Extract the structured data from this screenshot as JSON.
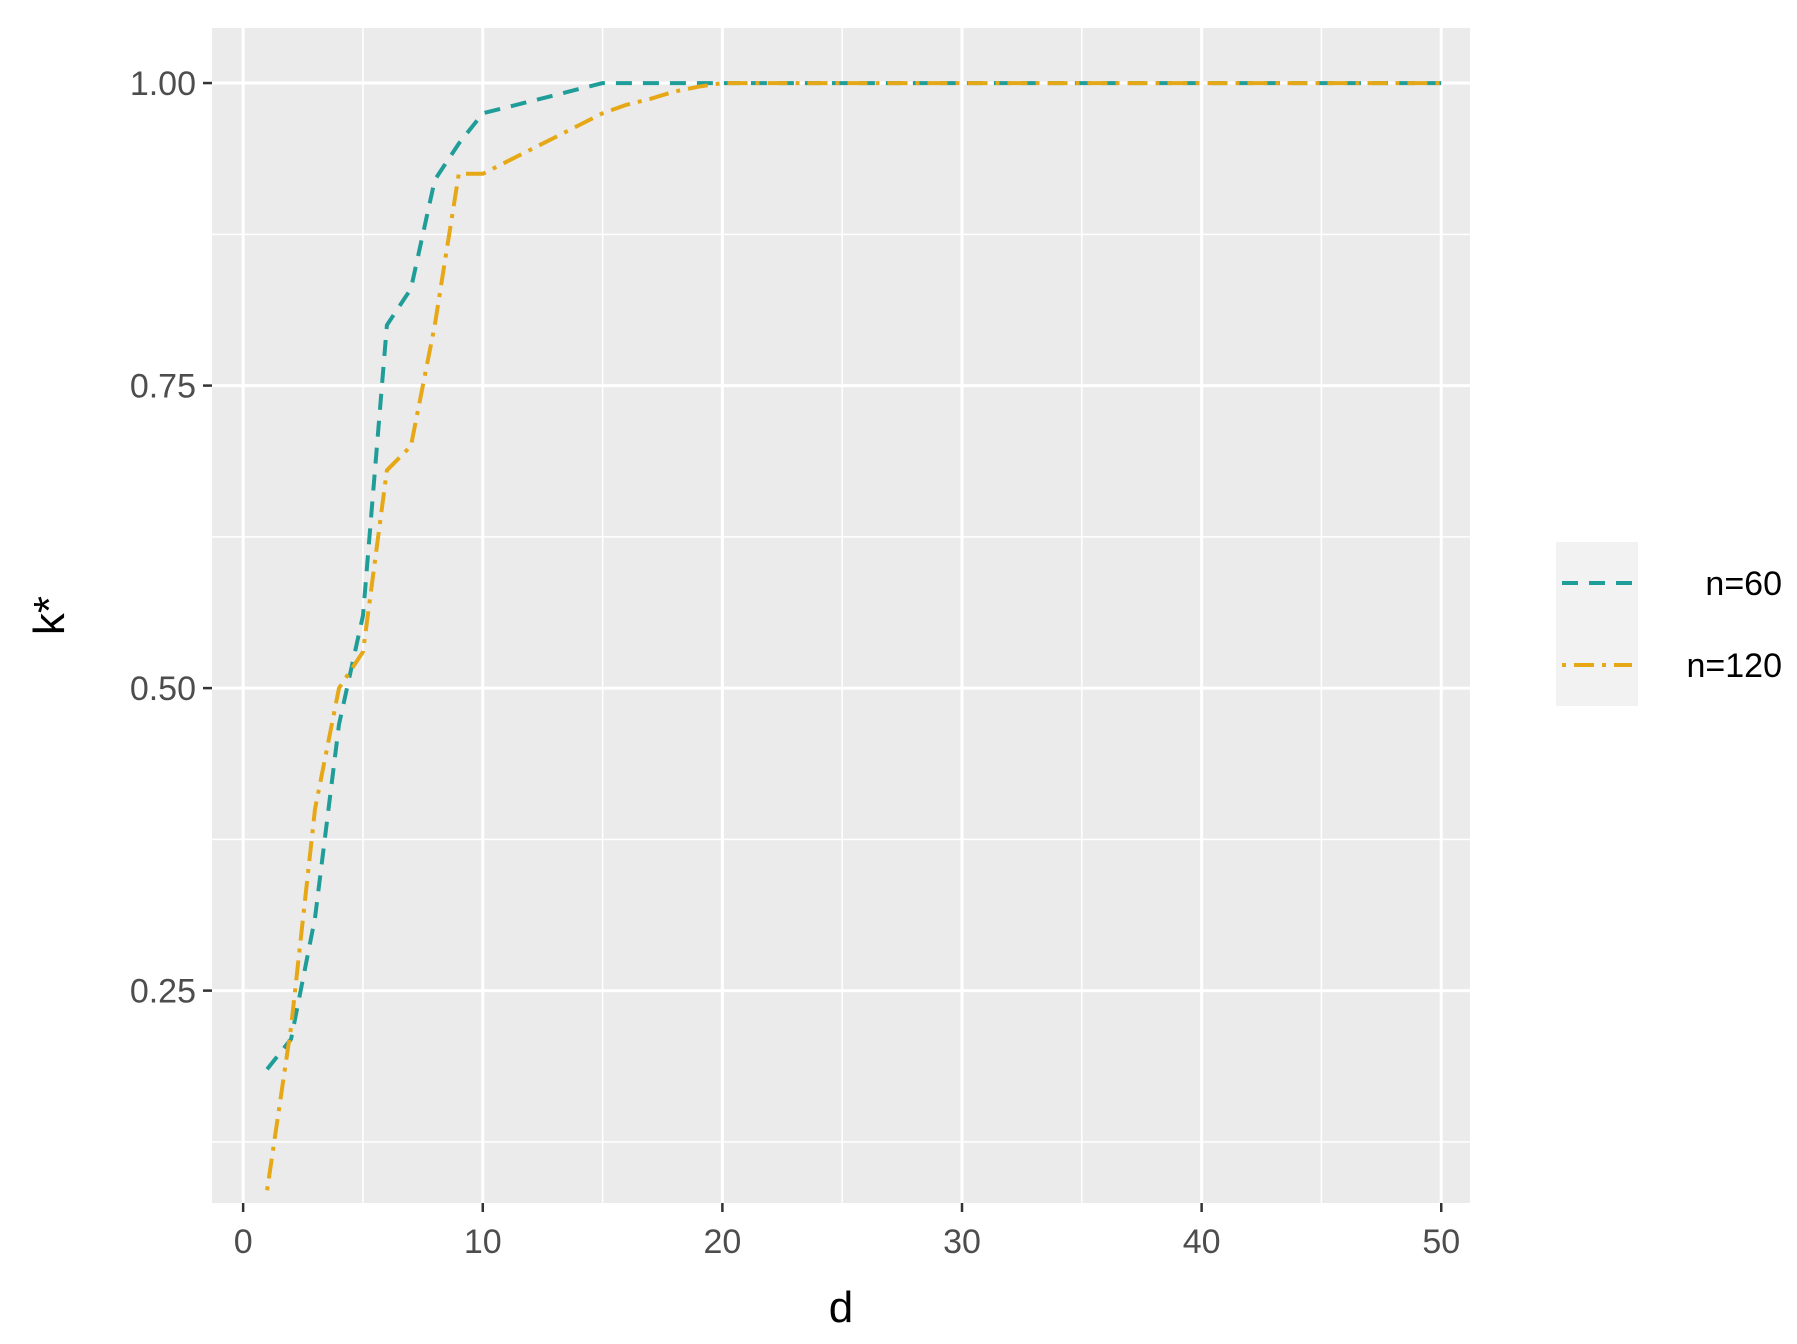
{
  "chart_data": {
    "type": "line",
    "xlabel": "d",
    "ylabel": "k*",
    "xlim": [
      -1.3,
      51.2
    ],
    "ylim": [
      0.0745,
      1.0455
    ],
    "x_ticks": [
      0,
      10,
      20,
      30,
      40,
      50
    ],
    "x_tick_labels": [
      "0",
      "10",
      "20",
      "30",
      "40",
      "50"
    ],
    "y_ticks": [
      0.25,
      0.5,
      0.75,
      1.0
    ],
    "y_tick_labels": [
      "0.25",
      "0.50",
      "0.75",
      "1.00"
    ],
    "grid": true,
    "background": "#ebebeb",
    "legend_position": "right",
    "series": [
      {
        "name": "n=60",
        "color": "#1f9e99",
        "dash": "dashed",
        "x": [
          1,
          2,
          3,
          4,
          5,
          6,
          7,
          8,
          9,
          10,
          11,
          12,
          13,
          14,
          15,
          16,
          17,
          18,
          19,
          20,
          21,
          22,
          23,
          24,
          25,
          26,
          27,
          28,
          29,
          30,
          31,
          32,
          33,
          34,
          35,
          36,
          37,
          38,
          39,
          40,
          41,
          42,
          43,
          44,
          45,
          46,
          47,
          48,
          49,
          50
        ],
        "values": [
          0.185,
          0.21,
          0.31,
          0.47,
          0.56,
          0.8,
          0.83,
          0.92,
          0.95,
          0.975,
          0.98,
          0.985,
          0.99,
          0.995,
          1.0,
          1.0,
          1.0,
          1.0,
          1.0,
          1.0,
          1.0,
          1.0,
          1.0,
          1.0,
          1.0,
          1.0,
          1.0,
          1.0,
          1.0,
          1.0,
          1.0,
          1.0,
          1.0,
          1.0,
          1.0,
          1.0,
          1.0,
          1.0,
          1.0,
          1.0,
          1.0,
          1.0,
          1.0,
          1.0,
          1.0,
          1.0,
          1.0,
          1.0,
          1.0,
          1.0
        ]
      },
      {
        "name": "n=120",
        "color": "#e6a817",
        "dash": "dotdash",
        "x": [
          1,
          2,
          3,
          4,
          5,
          6,
          7,
          8,
          9,
          10,
          11,
          12,
          13,
          14,
          15,
          16,
          17,
          18,
          19,
          20,
          21,
          22,
          23,
          24,
          25,
          26,
          27,
          28,
          29,
          30,
          31,
          32,
          33,
          34,
          35,
          36,
          37,
          38,
          39,
          40,
          41,
          42,
          43,
          44,
          45,
          46,
          47,
          48,
          49,
          50
        ],
        "values": [
          0.085,
          0.22,
          0.4,
          0.5,
          0.53,
          0.68,
          0.7,
          0.8,
          0.925,
          0.925,
          0.935,
          0.945,
          0.955,
          0.965,
          0.975,
          0.982,
          0.987,
          0.993,
          0.997,
          1.0,
          1.0,
          1.0,
          1.0,
          1.0,
          1.0,
          1.0,
          1.0,
          1.0,
          1.0,
          1.0,
          1.0,
          1.0,
          1.0,
          1.0,
          1.0,
          1.0,
          1.0,
          1.0,
          1.0,
          1.0,
          1.0,
          1.0,
          1.0,
          1.0,
          1.0,
          1.0,
          1.0,
          1.0,
          1.0,
          1.0
        ]
      }
    ]
  }
}
